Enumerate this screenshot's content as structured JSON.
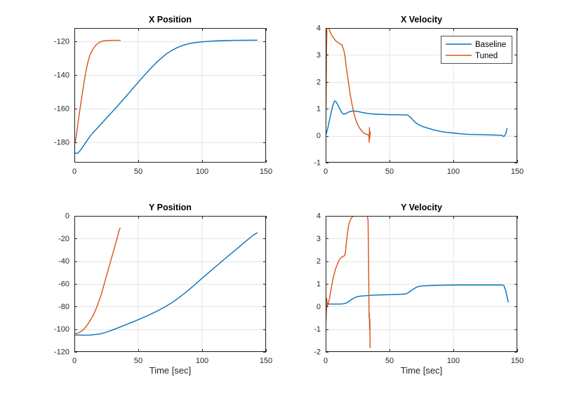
{
  "figure": {
    "background": "#ffffff",
    "axis_color": "#262626",
    "grid_color": "#e4e4e4",
    "tick_label_color": "#262626",
    "baseline_color": "#0072BD",
    "tuned_color": "#D95319"
  },
  "chart_data": [
    {
      "id": "x-position",
      "type": "line",
      "title": "X Position",
      "xlabel": "",
      "ylabel": "",
      "xlim": [
        0,
        150
      ],
      "ylim": [
        -192,
        -112
      ],
      "xticks": [
        0,
        50,
        100,
        150
      ],
      "yticks": [
        -180,
        -160,
        -140,
        -120
      ],
      "grid": true,
      "legend": null,
      "series": [
        {
          "name": "Baseline",
          "color": "#0072BD",
          "x": [
            0,
            1,
            2.5,
            4,
            6,
            8,
            10,
            12,
            14,
            17,
            20,
            25,
            30,
            35,
            40,
            45,
            50,
            55,
            60,
            64,
            68,
            72,
            76,
            80,
            85,
            90,
            95,
            100,
            107,
            115,
            125,
            135,
            143
          ],
          "y": [
            -186,
            -186.5,
            -186.4,
            -185.3,
            -183.3,
            -181,
            -178.8,
            -176.6,
            -174.6,
            -172.3,
            -169.8,
            -165.6,
            -161.5,
            -157.3,
            -153,
            -148.6,
            -144.2,
            -139.9,
            -135.8,
            -132.7,
            -129.9,
            -127.4,
            -125.4,
            -123.8,
            -122.3,
            -121.2,
            -120.6,
            -120.2,
            -119.8,
            -119.5,
            -119.3,
            -119.25,
            -119.2
          ]
        },
        {
          "name": "Tuned",
          "color": "#D95319",
          "x": [
            0,
            0.5,
            1.5,
            3,
            4.5,
            6,
            7.5,
            9,
            10.5,
            12,
            13.5,
            15,
            17,
            19,
            21,
            23,
            26,
            30,
            36
          ],
          "y": [
            -181.5,
            -180.3,
            -176,
            -167.5,
            -159.5,
            -152,
            -144.5,
            -138,
            -132.5,
            -128.5,
            -126,
            -124,
            -122,
            -120.8,
            -120,
            -119.6,
            -119.4,
            -119.3,
            -119.3
          ]
        }
      ]
    },
    {
      "id": "x-velocity",
      "type": "line",
      "title": "X Velocity",
      "xlabel": "",
      "ylabel": "",
      "xlim": [
        0,
        150
      ],
      "ylim": [
        -1,
        4
      ],
      "xticks": [
        0,
        50,
        100,
        150
      ],
      "yticks": [
        -1,
        0,
        1,
        2,
        3,
        4
      ],
      "grid": true,
      "legend": {
        "position": "northeast",
        "entries": [
          {
            "label": "Baseline",
            "color": "#0072BD"
          },
          {
            "label": "Tuned",
            "color": "#D95319"
          }
        ]
      },
      "series": [
        {
          "name": "Baseline",
          "color": "#0072BD",
          "x": [
            0,
            1,
            2,
            3.5,
            5,
            6,
            7,
            8,
            9.5,
            11,
            12.5,
            14,
            16,
            18,
            20,
            22,
            24,
            27,
            30,
            34,
            38,
            44,
            50,
            56,
            62,
            64,
            66,
            68,
            70,
            73,
            76,
            80,
            85,
            90,
            95,
            100,
            106,
            112,
            120,
            128,
            134,
            138,
            139.5,
            140.5,
            141.2,
            142
          ],
          "y": [
            0.02,
            0.15,
            0.35,
            0.7,
            1.0,
            1.18,
            1.29,
            1.27,
            1.15,
            1.0,
            0.87,
            0.8,
            0.82,
            0.88,
            0.91,
            0.92,
            0.91,
            0.88,
            0.85,
            0.82,
            0.8,
            0.79,
            0.78,
            0.78,
            0.77,
            0.77,
            0.7,
            0.6,
            0.5,
            0.4,
            0.34,
            0.28,
            0.21,
            0.16,
            0.12,
            0.1,
            0.07,
            0.05,
            0.04,
            0.03,
            0.02,
            0.01,
            -0.03,
            0.02,
            0.1,
            0.27
          ]
        },
        {
          "name": "Tuned",
          "color": "#D95319",
          "x": [
            0,
            0.4,
            0.7,
            1.0,
            1.8,
            2.5,
            4,
            6,
            8,
            10,
            12,
            13,
            13.2,
            14,
            15,
            16,
            17.5,
            19,
            20.5,
            22,
            23.5,
            25,
            27,
            29,
            31,
            33,
            33.8,
            34.1,
            34.3,
            34.5,
            34.7,
            35
          ],
          "y": [
            0,
            1.5,
            3.2,
            4.0,
            4.02,
            3.98,
            3.8,
            3.64,
            3.52,
            3.45,
            3.39,
            3.37,
            3.3,
            3.22,
            3.0,
            2.6,
            2.1,
            1.6,
            1.2,
            0.85,
            0.6,
            0.42,
            0.25,
            0.14,
            0.07,
            0.03,
            0.02,
            -0.25,
            0.3,
            -0.1,
            0.15,
            0.05
          ]
        }
      ]
    },
    {
      "id": "y-position",
      "type": "line",
      "title": "Y Position",
      "xlabel": "Time [sec]",
      "ylabel": "",
      "xlim": [
        0,
        150
      ],
      "ylim": [
        -120,
        0
      ],
      "xticks": [
        0,
        50,
        100,
        150
      ],
      "yticks": [
        -120,
        -100,
        -80,
        -60,
        -40,
        -20,
        0
      ],
      "grid": true,
      "legend": null,
      "series": [
        {
          "name": "Baseline",
          "color": "#0072BD",
          "x": [
            0,
            4,
            8,
            12,
            16,
            20,
            24,
            28,
            32,
            36,
            40,
            45,
            50,
            55,
            60,
            64,
            68,
            72,
            76,
            80,
            85,
            90,
            95,
            100,
            105,
            110,
            115,
            120,
            125,
            130,
            135,
            140,
            143
          ],
          "y": [
            -105,
            -105.2,
            -105.3,
            -105.2,
            -104.8,
            -104.2,
            -103,
            -101.5,
            -99.8,
            -98,
            -96.2,
            -93.9,
            -91.6,
            -89.2,
            -86.6,
            -84.4,
            -82.1,
            -79.6,
            -76.8,
            -73.7,
            -69.5,
            -64.9,
            -60,
            -55,
            -50.2,
            -45.4,
            -40.6,
            -35.8,
            -31.1,
            -26.4,
            -21.7,
            -17,
            -15
          ]
        },
        {
          "name": "Tuned",
          "color": "#D95319",
          "x": [
            0,
            1.5,
            3,
            4.5,
            6,
            7.5,
            9,
            10.5,
            12,
            13.5,
            15,
            16.5,
            18,
            19.5,
            21,
            23,
            25,
            27,
            29,
            31,
            33,
            34,
            35,
            35.8
          ],
          "y": [
            -103.5,
            -103.7,
            -103.3,
            -102.5,
            -101.3,
            -99.8,
            -97.9,
            -95.6,
            -93,
            -90.2,
            -87,
            -83.3,
            -79,
            -74.3,
            -69.5,
            -61.5,
            -53.5,
            -45.5,
            -37.5,
            -29.5,
            -21.5,
            -17.5,
            -13,
            -10.8
          ]
        }
      ]
    },
    {
      "id": "y-velocity",
      "type": "line",
      "title": "Y Velocity",
      "xlabel": "Time [sec]",
      "ylabel": "",
      "xlim": [
        0,
        150
      ],
      "ylim": [
        -2,
        4
      ],
      "xticks": [
        0,
        50,
        100,
        150
      ],
      "yticks": [
        -2,
        -1,
        0,
        1,
        2,
        3,
        4
      ],
      "grid": true,
      "legend": null,
      "series": [
        {
          "name": "Baseline",
          "color": "#0072BD",
          "x": [
            0,
            0.5,
            1,
            2,
            3,
            5,
            8,
            11,
            14,
            16,
            18,
            20,
            22,
            24,
            26,
            29,
            32,
            36,
            42,
            48,
            54,
            60,
            63,
            65,
            67,
            69,
            71,
            73,
            76,
            80,
            86,
            92,
            100,
            110,
            120,
            130,
            138,
            139.5,
            141,
            142.5,
            143
          ],
          "y": [
            0.05,
            -0.2,
            0.05,
            0.1,
            0.11,
            0.11,
            0.11,
            0.11,
            0.12,
            0.15,
            0.22,
            0.3,
            0.37,
            0.42,
            0.45,
            0.47,
            0.48,
            0.5,
            0.51,
            0.52,
            0.53,
            0.54,
            0.56,
            0.62,
            0.7,
            0.78,
            0.85,
            0.89,
            0.91,
            0.92,
            0.93,
            0.94,
            0.95,
            0.95,
            0.95,
            0.95,
            0.95,
            0.93,
            0.7,
            0.3,
            0.2
          ]
        },
        {
          "name": "Tuned",
          "color": "#D95319",
          "x": [
            0,
            0.3,
            0.6,
            0.9,
            1.2,
            1.6,
            2,
            2.5,
            3,
            4,
            5,
            6.5,
            8,
            9.5,
            11,
            12.5,
            13,
            14,
            15,
            15.5,
            16,
            17,
            18,
            19.5,
            21,
            23,
            26,
            30,
            32.5,
            33.2,
            33.6,
            34,
            34.2,
            34.4,
            34.6,
            34.8
          ],
          "y": [
            0,
            -0.65,
            -0.2,
            0.35,
            0,
            0.15,
            0.1,
            0.25,
            0.35,
            0.7,
            1.0,
            1.4,
            1.7,
            1.92,
            2.08,
            2.17,
            2.2,
            2.22,
            2.25,
            2.4,
            2.7,
            3.2,
            3.6,
            3.85,
            3.97,
            4.02,
            4.03,
            4.03,
            4.02,
            3.8,
            2.0,
            -0.5,
            -0.3,
            -1.0,
            -0.55,
            -1.82
          ]
        }
      ]
    }
  ]
}
